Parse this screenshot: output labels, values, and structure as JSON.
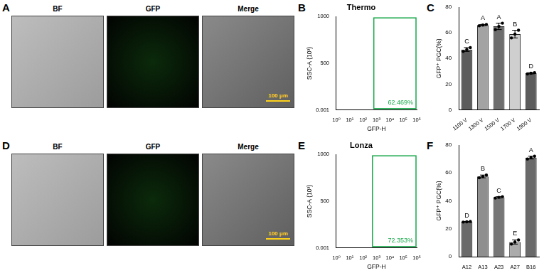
{
  "figure": {
    "panels": [
      {
        "letter": "A",
        "images": [
          "BF",
          "GFP",
          "Merge"
        ],
        "scale_bar": "100 μm"
      },
      {
        "letter": "D",
        "images": [
          "BF",
          "GFP",
          "Merge"
        ],
        "scale_bar": "100 μm"
      }
    ]
  },
  "chart_data": [
    {
      "panel": "B",
      "type": "scatter",
      "title": "Thermo",
      "x_label": "GFP-H",
      "y_label": "SSC-A (10³)",
      "log": "x",
      "xlim": [
        1,
        1000000
      ],
      "xticks": [
        {
          "value": 1,
          "label": "10⁰"
        },
        {
          "value": 10,
          "label": "10¹"
        },
        {
          "value": 100,
          "label": "10²"
        },
        {
          "value": 1000,
          "label": "10³"
        },
        {
          "value": 10000,
          "label": "10⁴"
        },
        {
          "value": 100000,
          "label": "10⁵"
        },
        {
          "value": 1000000,
          "label": "10⁶"
        }
      ],
      "ylim": [
        0.001,
        1000
      ],
      "yticks": [
        0.001,
        500,
        1000
      ],
      "grid": false,
      "gate": {
        "x": [
          630,
          1000000
        ],
        "y": [
          15,
          985
        ],
        "label": "62.469%",
        "color": "#19a84b"
      }
    },
    {
      "panel": "C",
      "type": "bar",
      "y_label": "GFP⁺ PGC(%)",
      "categories": [
        "1100 V",
        "1300 V",
        "1500 V",
        "1700 V",
        "1900 V"
      ],
      "values": [
        47,
        66,
        65,
        59,
        28.5
      ],
      "error": [
        1.5,
        0.5,
        2.5,
        3,
        0.5
      ],
      "replicates": [
        [
          45.5,
          47,
          48.5
        ],
        [
          65.5,
          66,
          66.5
        ],
        [
          62.5,
          65,
          67.5
        ],
        [
          56,
          59,
          62
        ],
        [
          28,
          28.5,
          29
        ]
      ],
      "annotations": [
        "C",
        "A",
        "A",
        "B",
        "D"
      ],
      "colors": [
        "#5c5c5c",
        "#a3a3a3",
        "#6e6e6e",
        "#cfcfcf",
        "#5c5c5c"
      ],
      "ylim": [
        0,
        80
      ],
      "yticks": [
        0,
        20,
        40,
        60,
        80
      ],
      "grid": false
    },
    {
      "panel": "E",
      "type": "scatter",
      "title": "Lonza",
      "x_label": "GFP-H",
      "y_label": "SSC-A (10³)",
      "log": "x",
      "xlim": [
        1,
        1000000
      ],
      "xticks": [
        {
          "value": 1,
          "label": "10⁰"
        },
        {
          "value": 10,
          "label": "10¹"
        },
        {
          "value": 100,
          "label": "10²"
        },
        {
          "value": 1000,
          "label": "10³"
        },
        {
          "value": 10000,
          "label": "10⁴"
        },
        {
          "value": 100000,
          "label": "10⁵"
        },
        {
          "value": 1000000,
          "label": "10⁶"
        }
      ],
      "ylim": [
        0.001,
        1000
      ],
      "yticks": [
        0.001,
        500,
        1000
      ],
      "grid": false,
      "gate": {
        "x": [
          500,
          1000000
        ],
        "y": [
          15,
          985
        ],
        "label": "72.353%",
        "color": "#19a84b"
      }
    },
    {
      "panel": "F",
      "type": "bar",
      "y_label": "GFP⁺ PGC(%)",
      "categories": [
        "A12",
        "A13",
        "A23",
        "A27",
        "B16"
      ],
      "values": [
        25,
        57.5,
        42.5,
        10.5,
        71
      ],
      "error": [
        0.2,
        1,
        0.5,
        1.5,
        1
      ],
      "replicates": [
        [
          24.8,
          25,
          25.2
        ],
        [
          56.5,
          57.5,
          58.5
        ],
        [
          42,
          42.5,
          43
        ],
        [
          9,
          10.5,
          12
        ],
        [
          70,
          71,
          72
        ]
      ],
      "annotations": [
        "D",
        "B",
        "C",
        "E",
        "A"
      ],
      "colors": [
        "#6a6a6a",
        "#8f8f8f",
        "#777777",
        "#ababab",
        "#6a6a6a"
      ],
      "ylim": [
        0,
        80
      ],
      "yticks": [
        0,
        20,
        40,
        60,
        80
      ],
      "grid": false
    }
  ]
}
